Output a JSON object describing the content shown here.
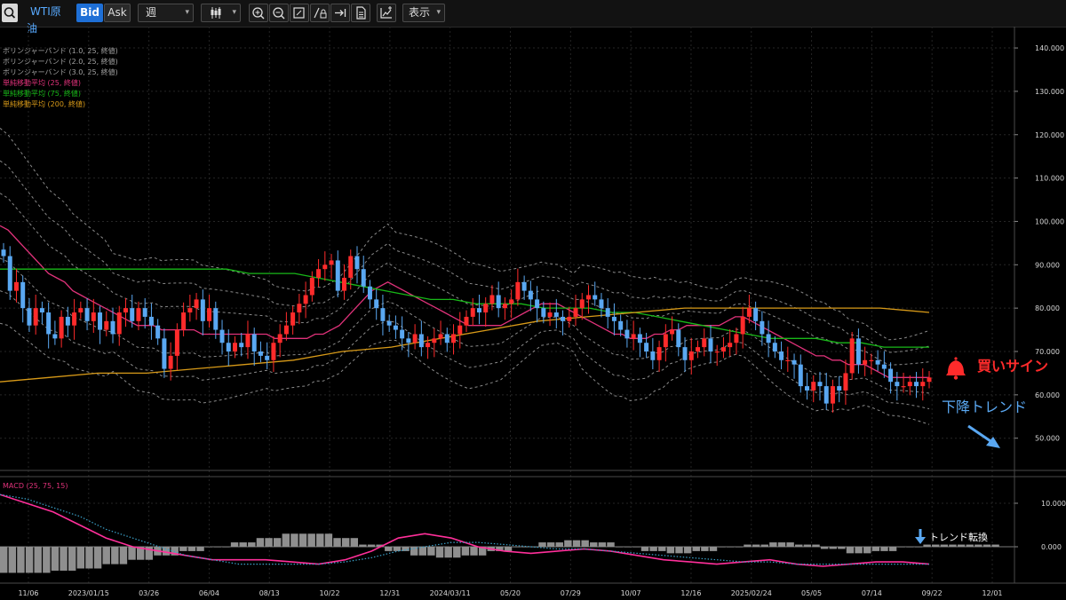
{
  "toolbar": {
    "symbol": "WTI原油",
    "bid_label": "Bid",
    "ask_label": "Ask",
    "period": "週",
    "display_label": "表示"
  },
  "colors": {
    "up": "#ff2b2b",
    "down": "#5aa8f2",
    "ma25": "#e0327a",
    "ma75": "#18b818",
    "ma200": "#d89a18",
    "band": "#8a8a8a",
    "macd": "#ff2f9a",
    "signal": "#3aa0c8",
    "hist": "#8f8f8f",
    "bid_active": "#1e6fd6"
  },
  "legend": [
    {
      "text": "ボリンジャーバンド (1.0, 25, 終値)",
      "color": "#a0a0a0"
    },
    {
      "text": "ボリンジャーバンド (2.0, 25, 終値)",
      "color": "#a0a0a0"
    },
    {
      "text": "ボリンジャーバンド (3.0, 25, 終値)",
      "color": "#a0a0a0"
    },
    {
      "text": "単純移動平均 (25, 終値)",
      "color": "#e0327a"
    },
    {
      "text": "単純移動平均 (75, 終値)",
      "color": "#18b818"
    },
    {
      "text": "単純移動平均 (200, 終値)",
      "color": "#d89a18"
    }
  ],
  "annotations": {
    "buy_sign": "買いサイン",
    "down_trend": "下降トレンド",
    "trend_reversal": "トレンド転換"
  },
  "chart_data": [
    {
      "type": "candlestick",
      "title": "WTI原油",
      "period": "weekly",
      "y_ticks": [
        "140.000",
        "130.000",
        "120.000",
        "110.000",
        "100.000",
        "90.000",
        "80.000",
        "70.000",
        "60.000",
        "50.000"
      ],
      "ylim": [
        40,
        145
      ],
      "x_ticks": [
        "11/06",
        "2023/01/15",
        "03/26",
        "06/04",
        "08/13",
        "10/22",
        "12/31",
        "2024/03/11",
        "05/20",
        "07/29",
        "10/07",
        "12/16",
        "2025/02/24",
        "05/05",
        "07/14",
        "09/22",
        "12/01"
      ],
      "grid": true,
      "indicators": [
        "Bollinger Bands (1.0, 25, close)",
        "Bollinger Bands (2.0, 25, close)",
        "Bollinger Bands (3.0, 25, close)",
        "SMA 25",
        "SMA 75",
        "SMA 200"
      ],
      "candles_close": [
        92,
        84,
        86,
        80,
        76,
        80,
        79,
        74,
        73,
        78,
        76,
        79,
        80,
        77,
        79,
        75,
        77,
        74,
        79,
        80,
        77,
        80,
        78,
        76,
        73,
        66,
        69,
        75,
        79,
        80,
        82,
        77,
        80,
        75,
        72,
        70,
        72,
        71,
        74,
        70,
        69,
        68,
        72,
        74,
        76,
        79,
        81,
        83,
        87,
        89,
        90,
        91,
        84,
        87,
        92,
        89,
        85,
        82,
        80,
        77,
        76,
        75,
        73,
        72,
        74,
        71,
        72,
        73,
        74,
        72,
        74,
        76,
        78,
        80,
        79,
        81,
        83,
        80,
        81,
        82,
        86,
        84,
        82,
        80,
        78,
        79,
        78,
        77,
        78,
        80,
        82,
        83,
        82,
        80,
        78,
        77,
        75,
        73,
        74,
        72,
        70,
        68,
        71,
        74,
        75,
        71,
        68,
        70,
        71,
        73,
        70,
        70,
        71,
        72,
        74,
        78,
        80,
        77,
        74,
        72,
        70,
        68,
        68,
        67,
        62,
        61,
        63,
        62,
        58,
        62,
        61,
        65,
        73,
        67,
        68,
        68,
        67,
        66,
        63,
        62,
        62,
        63,
        62,
        63,
        64
      ],
      "sma25": [
        99,
        98,
        96,
        94,
        92,
        90,
        88,
        87,
        86,
        84,
        83,
        82,
        81,
        80,
        79,
        78,
        77,
        76,
        76,
        76,
        75,
        75,
        75,
        75,
        75,
        74,
        74,
        74,
        74,
        74,
        74,
        74,
        74,
        74,
        73,
        73,
        73,
        73,
        73,
        74,
        74,
        75,
        76,
        78,
        80,
        82,
        84,
        85,
        86,
        85,
        84,
        83,
        82,
        81,
        80,
        79,
        78,
        77,
        76,
        76,
        76,
        76,
        76,
        77,
        78,
        79,
        80,
        81,
        81,
        81,
        80,
        79,
        78,
        77,
        76,
        75,
        74,
        74,
        73,
        73,
        73,
        74,
        74,
        75,
        75,
        76,
        76,
        76,
        76,
        76,
        77,
        78,
        78,
        77,
        76,
        75,
        74,
        73,
        72,
        71,
        70,
        69,
        69,
        68,
        68,
        67,
        67,
        67,
        66,
        65,
        64,
        64,
        64,
        64,
        64,
        64
      ],
      "sma75": [
        89,
        89,
        89,
        89,
        89,
        89,
        89,
        89,
        89,
        89,
        89,
        88,
        88,
        88,
        87,
        86,
        85,
        84,
        83,
        82,
        82,
        81,
        81,
        81,
        80,
        80,
        80,
        79,
        79,
        78,
        77,
        76,
        75,
        74,
        73,
        73,
        73,
        72,
        72,
        71,
        71,
        71
      ],
      "sma200": [
        63,
        64,
        65,
        65,
        66,
        67,
        68,
        70,
        71,
        73,
        75,
        77,
        78,
        79,
        80,
        80,
        80,
        80,
        80,
        79
      ],
      "annotations": [
        "買いサイン",
        "下降トレンド"
      ]
    },
    {
      "type": "bar+line",
      "title": "MACD (25, 75, 15)",
      "y_ticks": [
        "10.000",
        "0.000"
      ],
      "series": [
        {
          "name": "MACD",
          "values": [
            12,
            10,
            8,
            5,
            2,
            0,
            -1,
            -2,
            -3,
            -3,
            -3,
            -3.5,
            -4,
            -3,
            -1,
            2,
            3,
            2,
            0,
            -1,
            -1.5,
            -1,
            -0.5,
            -1,
            -2,
            -3,
            -3.5,
            -4,
            -3.5,
            -3,
            -4,
            -4.5,
            -4,
            -3.5,
            -3.5,
            -4
          ]
        },
        {
          "name": "Signal",
          "values": [
            12,
            11,
            9,
            7,
            4,
            2,
            0,
            -2,
            -3,
            -4,
            -4,
            -4,
            -4,
            -3.5,
            -2.5,
            -1,
            0,
            1,
            1,
            0.5,
            0,
            -0.5,
            -0.5,
            -1,
            -1.5,
            -2,
            -2.5,
            -3,
            -3.5,
            -3.5,
            -4,
            -4,
            -4,
            -4,
            -4,
            -4
          ]
        },
        {
          "name": "Histogram",
          "values": [
            -6,
            -6,
            -5.5,
            -5,
            -4,
            -3,
            -2,
            -1,
            0,
            1,
            2,
            3,
            3,
            2,
            0.5,
            -1,
            -2,
            -2.5,
            -2,
            -1,
            0,
            1,
            1.5,
            1,
            0,
            -1,
            -1.5,
            -1,
            0,
            0.5,
            1,
            0.5,
            -0.5,
            -1.5,
            -1,
            0,
            0.5,
            0.5,
            0.5
          ]
        }
      ],
      "annotation": "トレンド転換"
    }
  ]
}
